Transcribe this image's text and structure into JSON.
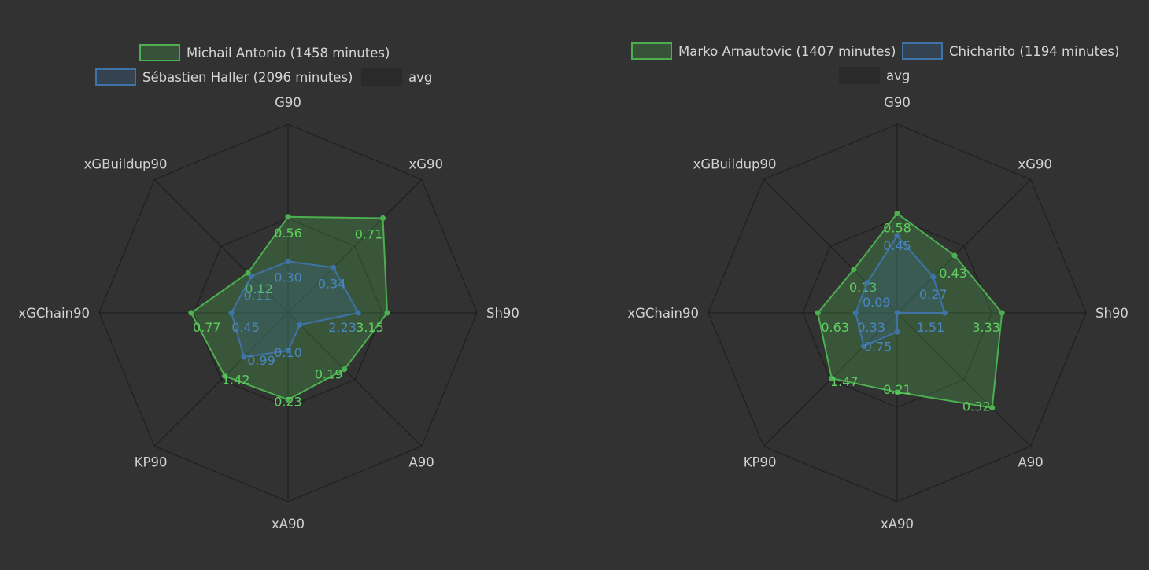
{
  "chart_data": [
    {
      "type": "radar",
      "axes": [
        "G90",
        "xG90",
        "Sh90",
        "A90",
        "xA90",
        "KP90",
        "xGChain90",
        "xGBuildup90"
      ],
      "series": [
        {
          "name": "Michail Antonio (1458 minutes)",
          "color": "#4caf50",
          "values": [
            0.56,
            0.71,
            3.15,
            0.19,
            0.23,
            1.42,
            0.77,
            0.12
          ],
          "labels": [
            "0.56",
            "0.71",
            "3.15",
            "0.19",
            "0.23",
            "1.42",
            "0.77",
            "0.12"
          ]
        },
        {
          "name": "Sébastien Haller (2096 minutes)",
          "color": "#3f73a8",
          "values": [
            0.3,
            0.34,
            2.23,
            0.04,
            0.1,
            0.99,
            0.45,
            0.11
          ],
          "labels": [
            "0.30",
            "0.34",
            "2.23",
            "",
            "0.10",
            "0.99",
            "0.45",
            "0.11"
          ]
        }
      ],
      "avg_label": "avg",
      "grid": "polygon"
    },
    {
      "type": "radar",
      "axes": [
        "G90",
        "xG90",
        "Sh90",
        "A90",
        "xA90",
        "KP90",
        "xGChain90",
        "xGBuildup90"
      ],
      "series": [
        {
          "name": "Marko Arnautovic (1407 minutes)",
          "color": "#4caf50",
          "values": [
            0.58,
            0.43,
            3.33,
            0.32,
            0.21,
            1.47,
            0.63,
            0.13
          ],
          "labels": [
            "0.58",
            "0.43",
            "3.33",
            "0.32",
            "0.21",
            "1.47",
            "0.63",
            "0.13"
          ]
        },
        {
          "name": "Chicharito (1194 minutes)",
          "color": "#3f73a8",
          "values": [
            0.45,
            0.27,
            1.51,
            0.0,
            0.05,
            0.75,
            0.33,
            0.09
          ],
          "labels": [
            "0.45",
            "0.27",
            "1.51",
            "",
            "",
            "0.75",
            "0.33",
            "0.09"
          ]
        }
      ],
      "avg_label": "avg",
      "grid": "polygon"
    }
  ],
  "colors": {
    "background": "#323232",
    "grid": "#1f1f1f",
    "text": "#d2d2d2",
    "green": "#4caf50",
    "blue": "#3f73a8"
  }
}
